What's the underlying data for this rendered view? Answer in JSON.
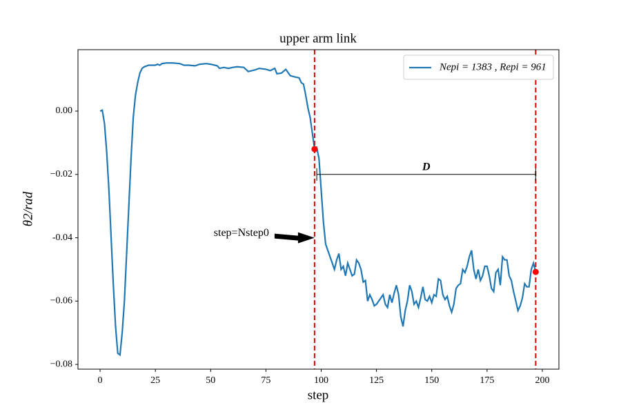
{
  "chart_data": {
    "type": "line",
    "title": "upper arm link",
    "xlabel": "step",
    "ylabel": "θ2/rad",
    "x": [
      0,
      1,
      2,
      3,
      4,
      5,
      6,
      7,
      8,
      9,
      10,
      11,
      12,
      13,
      14,
      15,
      16,
      17,
      18,
      19,
      20,
      22,
      25,
      26,
      27,
      28,
      30,
      33,
      36,
      38,
      40,
      43,
      45,
      48,
      50,
      53,
      54,
      56,
      58,
      60,
      62,
      65,
      67,
      70,
      72,
      75,
      77,
      79,
      80,
      82,
      84,
      86,
      88,
      90,
      91,
      92,
      93,
      94,
      95,
      96,
      97,
      98,
      99,
      100,
      101,
      102,
      103,
      104,
      105,
      106,
      107,
      108,
      109,
      110,
      111,
      112,
      113,
      114,
      115,
      116,
      117,
      118,
      119,
      120,
      121,
      122,
      123,
      124,
      125,
      126,
      127,
      128,
      129,
      130,
      131,
      132,
      133,
      134,
      135,
      136,
      137,
      138,
      139,
      140,
      141,
      142,
      143,
      144,
      145,
      146,
      147,
      148,
      149,
      150,
      151,
      152,
      153,
      154,
      155,
      156,
      157,
      158,
      159,
      160,
      161,
      162,
      163,
      164,
      165,
      166,
      167,
      168,
      169,
      170,
      171,
      172,
      173,
      174,
      175,
      176,
      177,
      178,
      179,
      180,
      181,
      182,
      183,
      184,
      185,
      186,
      187,
      188,
      189,
      190,
      191,
      192,
      193,
      194,
      195,
      196,
      197
    ],
    "series": [
      {
        "name": "Nepi = 1383 , Repi = 961",
        "color": "#1f77b4",
        "values": [
          0,
          0.0003,
          -0.004,
          -0.013,
          -0.025,
          -0.04,
          -0.055,
          -0.068,
          -0.0765,
          -0.077,
          -0.07,
          -0.06,
          -0.045,
          -0.03,
          -0.015,
          -0.002,
          0.005,
          0.009,
          0.012,
          0.0135,
          0.014,
          0.0145,
          0.0145,
          0.0148,
          0.0145,
          0.015,
          0.0152,
          0.0152,
          0.015,
          0.0145,
          0.0145,
          0.0143,
          0.0148,
          0.015,
          0.0148,
          0.0143,
          0.0135,
          0.0138,
          0.0135,
          0.0138,
          0.014,
          0.0138,
          0.0125,
          0.013,
          0.0135,
          0.0132,
          0.0128,
          0.0135,
          0.0118,
          0.012,
          0.0132,
          0.0112,
          0.0108,
          0.0105,
          0.009,
          0.0085,
          0.005,
          0.001,
          -0.002,
          -0.007,
          -0.012,
          -0.0115,
          -0.015,
          -0.025,
          -0.035,
          -0.042,
          -0.044,
          -0.046,
          -0.048,
          -0.05,
          -0.047,
          -0.045,
          -0.05,
          -0.049,
          -0.052,
          -0.048,
          -0.05,
          -0.052,
          -0.0515,
          -0.047,
          -0.048,
          -0.05,
          -0.054,
          -0.0535,
          -0.06,
          -0.058,
          -0.0595,
          -0.0615,
          -0.061,
          -0.06,
          -0.059,
          -0.058,
          -0.061,
          -0.062,
          -0.058,
          -0.0605,
          -0.0575,
          -0.055,
          -0.058,
          -0.065,
          -0.068,
          -0.063,
          -0.06,
          -0.055,
          -0.057,
          -0.061,
          -0.06,
          -0.062,
          -0.059,
          -0.0555,
          -0.0595,
          -0.06,
          -0.0585,
          -0.0605,
          -0.058,
          -0.0585,
          -0.053,
          -0.0535,
          -0.058,
          -0.0595,
          -0.0585,
          -0.0615,
          -0.0635,
          -0.061,
          -0.056,
          -0.055,
          -0.0545,
          -0.05,
          -0.051,
          -0.049,
          -0.046,
          -0.044,
          -0.05,
          -0.053,
          -0.05,
          -0.0535,
          -0.052,
          -0.049,
          -0.049,
          -0.052,
          -0.056,
          -0.057,
          -0.051,
          -0.05,
          -0.055,
          -0.046,
          -0.047,
          -0.047,
          -0.052,
          -0.0535,
          -0.057,
          -0.06,
          -0.063,
          -0.0615,
          -0.059,
          -0.0545,
          -0.0555,
          -0.0555,
          -0.05,
          -0.048,
          -0.0508
        ]
      }
    ],
    "xlim": [
      -10,
      207.5
    ],
    "ylim": [
      -0.0815,
      0.0194
    ],
    "xticks": [
      0,
      25,
      50,
      75,
      100,
      125,
      150,
      175,
      200
    ],
    "yticks": [
      {
        "value": 0,
        "label": "0.00"
      },
      {
        "value": -0.02,
        "label": "−0.02"
      },
      {
        "value": -0.04,
        "label": "-0.04"
      },
      {
        "value": -0.06,
        "label": "−0.06"
      },
      {
        "value": -0.08,
        "label": "−0.08"
      }
    ],
    "legend": "upper right",
    "vlines": {
      "x": [
        97,
        197
      ],
      "color": "#e00000"
    },
    "points": {
      "x": [
        97,
        197
      ],
      "y": [
        -0.012,
        -0.0508
      ],
      "color": "#ff0000"
    },
    "span": {
      "label": "D",
      "x": [
        98,
        197
      ],
      "y": -0.02
    },
    "arrow": {
      "text": "step=Nstep0",
      "x": 97,
      "y": -0.04
    }
  }
}
